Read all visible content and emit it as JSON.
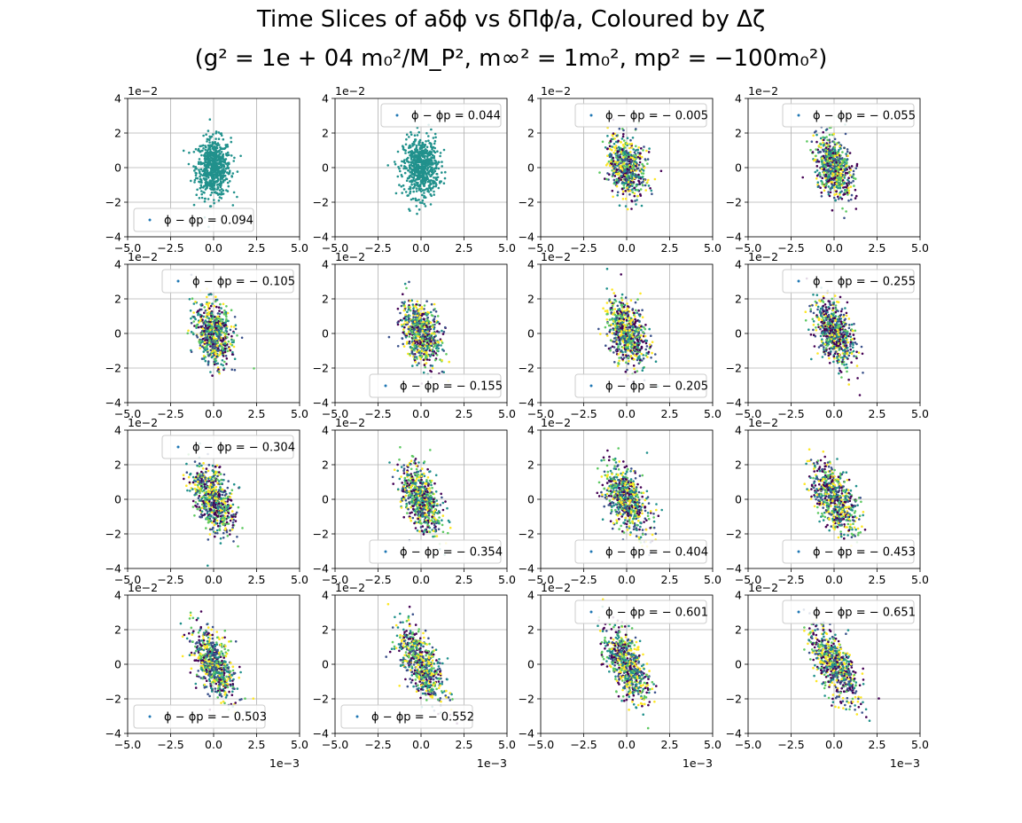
{
  "figure": {
    "title_line1": "Time Slices of aδϕ vs δΠϕ/a, Coloured by Δζ",
    "title_line2": "(g² = 1e + 04 m₀²/M_P², m∞² = 1m₀², mp² = −100m₀²)"
  },
  "chart_data": {
    "type": "scatter",
    "grid": true,
    "x_range": [
      -5.0,
      5.0
    ],
    "y_range": [
      -4.0,
      4.0
    ],
    "x_ticks": [
      "−5.0",
      "−2.5",
      "0.0",
      "2.5",
      "5.0"
    ],
    "y_ticks": [
      "−4",
      "−2",
      "0",
      "2",
      "4"
    ],
    "x_offset_label": "1e−3",
    "y_offset_label": "1e−2",
    "colormap": [
      "#440154",
      "#3b528b",
      "#21918c",
      "#5ec962",
      "#fde725"
    ],
    "panels": [
      {
        "legend": "ϕ − ϕp = 0.094",
        "legend_loc": "lower-left"
      },
      {
        "legend": "ϕ − ϕp = 0.044",
        "legend_loc": "upper-right"
      },
      {
        "legend": "ϕ − ϕp = − 0.005",
        "legend_loc": "upper-right"
      },
      {
        "legend": "ϕ − ϕp = − 0.055",
        "legend_loc": "upper-right"
      },
      {
        "legend": "ϕ − ϕp = − 0.105",
        "legend_loc": "upper-right"
      },
      {
        "legend": "ϕ − ϕp = − 0.155",
        "legend_loc": "lower-right"
      },
      {
        "legend": "ϕ − ϕp = − 0.205",
        "legend_loc": "lower-right"
      },
      {
        "legend": "ϕ − ϕp = − 0.255",
        "legend_loc": "upper-right"
      },
      {
        "legend": "ϕ − ϕp = − 0.304",
        "legend_loc": "upper-right"
      },
      {
        "legend": "ϕ − ϕp = − 0.354",
        "legend_loc": "lower-right"
      },
      {
        "legend": "ϕ − ϕp = − 0.404",
        "legend_loc": "lower-right"
      },
      {
        "legend": "ϕ − ϕp = − 0.453",
        "legend_loc": "lower-right"
      },
      {
        "legend": "ϕ − ϕp = − 0.503",
        "legend_loc": "lower-left"
      },
      {
        "legend": "ϕ − ϕp = − 0.552",
        "legend_loc": "lower-left"
      },
      {
        "legend": "ϕ − ϕp = − 0.601",
        "legend_loc": "upper-right"
      },
      {
        "legend": "ϕ − ϕp = − 0.651",
        "legend_loc": "upper-right"
      }
    ]
  }
}
